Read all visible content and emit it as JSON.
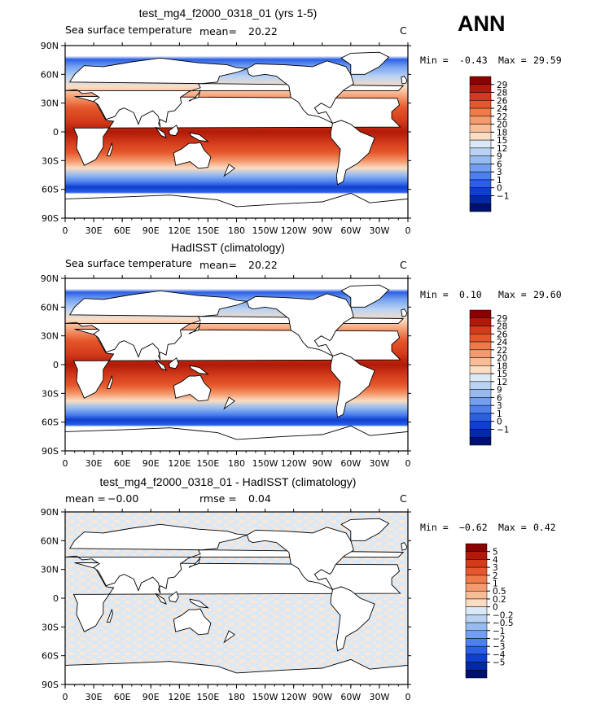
{
  "season": "ANN",
  "panels": [
    {
      "title": "test_mg4_f2000_0318_01 (yrs 1-5)",
      "variable": "Sea surface temperature",
      "mean_label": "mean=",
      "mean_value": "20.22",
      "rmse_label": "",
      "rmse_value": "",
      "units": "C",
      "min_label": "Min =",
      "min_value": "-0.43",
      "max_label": "Max =",
      "max_value": "29.59",
      "field": "absolute",
      "colorbar": {
        "colors": [
          "#8a0000",
          "#b01a08",
          "#d23a1a",
          "#e5582c",
          "#ef7a4a",
          "#f49a6e",
          "#f8bc97",
          "#fbddc3",
          "#dbe8f6",
          "#bbd3f3",
          "#97bbee",
          "#729ff0",
          "#4c80ef",
          "#2a5fe6",
          "#0f3fcf",
          "#032aa6",
          "#00106e"
        ],
        "labels": [
          "29",
          "28",
          "26",
          "24",
          "22",
          "20",
          "18",
          "15",
          "12",
          "9",
          "6",
          "3",
          "1",
          "0",
          "−1"
        ]
      }
    },
    {
      "title": "HadISST (climatology)",
      "variable": "Sea surface temperature",
      "mean_label": "mean=",
      "mean_value": "20.22",
      "rmse_label": "",
      "rmse_value": "",
      "units": "C",
      "min_label": "Min =",
      "min_value": "0.10",
      "max_label": "Max =",
      "max_value": "29.60",
      "field": "absolute",
      "colorbar": {
        "colors": [
          "#8a0000",
          "#b01a08",
          "#d23a1a",
          "#e5582c",
          "#ef7a4a",
          "#f49a6e",
          "#f8bc97",
          "#fbddc3",
          "#dbe8f6",
          "#bbd3f3",
          "#97bbee",
          "#729ff0",
          "#4c80ef",
          "#2a5fe6",
          "#0f3fcf",
          "#032aa6",
          "#00106e"
        ],
        "labels": [
          "29",
          "28",
          "26",
          "24",
          "22",
          "20",
          "18",
          "15",
          "12",
          "9",
          "6",
          "3",
          "1",
          "0",
          "−1"
        ]
      }
    },
    {
      "title": "test_mg4_f2000_0318_01 - HadISST (climatology)",
      "variable": "",
      "mean_label": "mean =",
      "mean_value": "−0.00",
      "rmse_label": "rmse =",
      "rmse_value": "0.04",
      "units": "C",
      "min_label": "Min =",
      "min_value": "−0.62",
      "max_label": "Max =",
      "max_value": "0.42",
      "field": "difference",
      "colorbar": {
        "colors": [
          "#8a0000",
          "#b01a08",
          "#d23a1a",
          "#e5582c",
          "#ef7a4a",
          "#f49a6e",
          "#f8bc97",
          "#fbddc3",
          "#dbe8f6",
          "#bbd3f3",
          "#97bbee",
          "#729ff0",
          "#4c80ef",
          "#2a5fe6",
          "#0f3fcf",
          "#032aa6",
          "#00106e"
        ],
        "labels": [
          "5",
          "4",
          "3",
          "2",
          "1",
          "0.5",
          "0.2",
          "0",
          "−0.2",
          "−0.5",
          "−1",
          "−2",
          "−3",
          "−4",
          "−5"
        ]
      }
    }
  ],
  "chart_data": [
    {
      "type": "heatmap",
      "title": "test_mg4_f2000_0318_01 (yrs 1-5)",
      "subtitle": "Sea surface temperature",
      "mean": 20.22,
      "min": -0.43,
      "max": 29.59,
      "units": "C",
      "x_ticks": [
        "0",
        "30E",
        "60E",
        "90E",
        "120E",
        "150E",
        "180",
        "150W",
        "120W",
        "90W",
        "60W",
        "30W",
        "0"
      ],
      "y_ticks": [
        "90N",
        "60N",
        "30N",
        "0",
        "30S",
        "60S",
        "90S"
      ],
      "xlim": [
        0,
        360
      ],
      "ylim": [
        -90,
        90
      ],
      "levels": [
        -1,
        0,
        1,
        3,
        6,
        9,
        12,
        15,
        18,
        20,
        22,
        24,
        26,
        28,
        29
      ],
      "legend": "right"
    },
    {
      "type": "heatmap",
      "title": "HadISST (climatology)",
      "subtitle": "Sea surface temperature",
      "mean": 20.22,
      "min": 0.1,
      "max": 29.6,
      "units": "C",
      "x_ticks": [
        "0",
        "30E",
        "60E",
        "90E",
        "120E",
        "150E",
        "180",
        "150W",
        "120W",
        "90W",
        "60W",
        "30W",
        "0"
      ],
      "y_ticks": [
        "90N",
        "60N",
        "30N",
        "0",
        "30S",
        "60S",
        "90S"
      ],
      "xlim": [
        0,
        360
      ],
      "ylim": [
        -90,
        90
      ],
      "levels": [
        -1,
        0,
        1,
        3,
        6,
        9,
        12,
        15,
        18,
        20,
        22,
        24,
        26,
        28,
        29
      ],
      "legend": "right"
    },
    {
      "type": "heatmap",
      "title": "test_mg4_f2000_0318_01 - HadISST (climatology)",
      "mean": -0.0,
      "rmse": 0.04,
      "min": -0.62,
      "max": 0.42,
      "units": "C",
      "x_ticks": [
        "0",
        "30E",
        "60E",
        "90E",
        "120E",
        "150E",
        "180",
        "150W",
        "120W",
        "90W",
        "60W",
        "30W",
        "0"
      ],
      "y_ticks": [
        "90N",
        "60N",
        "30N",
        "0",
        "30S",
        "60S",
        "90S"
      ],
      "xlim": [
        0,
        360
      ],
      "ylim": [
        -90,
        90
      ],
      "levels": [
        -5,
        -4,
        -3,
        -2,
        -1,
        -0.5,
        -0.2,
        0,
        0.2,
        0.5,
        1,
        2,
        3,
        4,
        5
      ],
      "legend": "right"
    }
  ]
}
